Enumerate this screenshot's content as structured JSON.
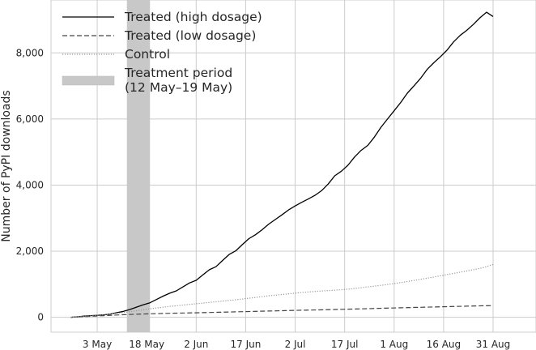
{
  "chart_data": {
    "type": "line",
    "title": "",
    "xlabel": "",
    "ylabel": "Number of PyPI downloads",
    "grid": true,
    "legend_position": "top-left",
    "x_ticks": [
      "3 May",
      "18 May",
      "2 Jun",
      "17 Jun",
      "2 Jul",
      "17 Jul",
      "1 Aug",
      "16 Aug",
      "31 Aug"
    ],
    "x_tick_days": [
      8,
      23,
      38,
      53,
      68,
      83,
      98,
      113,
      128
    ],
    "x_range_days": [
      -6,
      141
    ],
    "y_ticks": [
      "0",
      "2,000",
      "4,000",
      "6,000",
      "8,000"
    ],
    "y_tick_values": [
      0,
      2000,
      4000,
      6000,
      8000
    ],
    "ylim": [
      -450,
      9600
    ],
    "treatment_period": {
      "label": "Treatment period",
      "sublabel": "(12 May–19 May)",
      "start_day": 17,
      "end_day": 24,
      "color": "#c8c8c8"
    },
    "series": [
      {
        "name": "Treated (high dosage)",
        "style": "solid",
        "color": "#000000",
        "x": [
          0,
          2,
          4,
          6,
          8,
          10,
          12,
          14,
          16,
          18,
          20,
          22,
          24,
          26,
          28,
          30,
          32,
          34,
          36,
          38,
          40,
          42,
          44,
          46,
          48,
          50,
          52,
          54,
          56,
          58,
          60,
          62,
          64,
          66,
          68,
          70,
          72,
          74,
          76,
          78,
          80,
          82,
          84,
          86,
          88,
          90,
          92,
          94,
          96,
          98,
          100,
          102,
          104,
          106,
          108,
          110,
          112,
          114,
          116,
          118,
          120,
          122,
          124,
          126,
          128
        ],
        "values": [
          0,
          15,
          35,
          50,
          60,
          75,
          100,
          140,
          180,
          240,
          310,
          380,
          440,
          540,
          640,
          730,
          800,
          920,
          1040,
          1120,
          1280,
          1440,
          1530,
          1720,
          1900,
          2010,
          2200,
          2380,
          2500,
          2650,
          2820,
          2960,
          3100,
          3250,
          3370,
          3480,
          3580,
          3690,
          3830,
          4030,
          4280,
          4420,
          4600,
          4850,
          5050,
          5200,
          5450,
          5750,
          6000,
          6250,
          6500,
          6780,
          7000,
          7230,
          7500,
          7700,
          7880,
          8080,
          8330,
          8530,
          8680,
          8860,
          9060,
          9230,
          9100
        ]
      },
      {
        "name": "Treated (low dosage)",
        "style": "dashed",
        "color": "#444444",
        "x": [
          0,
          5,
          10,
          15,
          20,
          25,
          30,
          35,
          40,
          45,
          50,
          55,
          60,
          65,
          70,
          75,
          80,
          85,
          90,
          95,
          100,
          105,
          110,
          115,
          120,
          125,
          128
        ],
        "values": [
          0,
          25,
          50,
          75,
          95,
          110,
          120,
          130,
          140,
          152,
          165,
          178,
          190,
          202,
          214,
          225,
          237,
          249,
          262,
          275,
          288,
          300,
          312,
          325,
          336,
          348,
          355
        ]
      },
      {
        "name": "Control",
        "style": "dotted",
        "color": "#999999",
        "x": [
          0,
          5,
          10,
          15,
          20,
          25,
          30,
          35,
          40,
          45,
          50,
          55,
          60,
          65,
          70,
          75,
          80,
          85,
          90,
          95,
          100,
          105,
          110,
          115,
          120,
          125,
          128
        ],
        "values": [
          0,
          35,
          80,
          130,
          200,
          270,
          330,
          380,
          430,
          480,
          530,
          590,
          650,
          700,
          750,
          790,
          820,
          860,
          920,
          980,
          1050,
          1130,
          1220,
          1310,
          1400,
          1500,
          1600
        ]
      }
    ]
  }
}
